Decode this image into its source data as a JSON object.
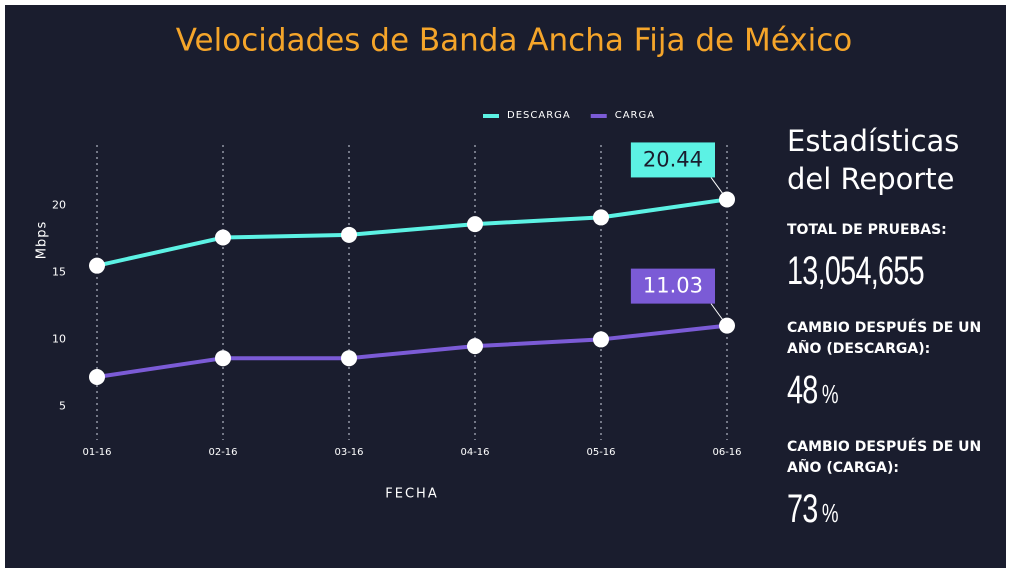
{
  "chart_data": {
    "type": "line",
    "title": "Velocidades de Banda Ancha Fija de México",
    "x_label": "FECHA",
    "y_label": "Mbps",
    "categories": [
      "01-16",
      "02-16",
      "03-16",
      "04-16",
      "05-16",
      "06-16"
    ],
    "series": [
      {
        "name": "DESCARGA",
        "color": "#5cf2e4",
        "values": [
          15.5,
          17.6,
          17.8,
          18.6,
          19.1,
          20.44
        ],
        "label_color": "#1a1d2e"
      },
      {
        "name": "CARGA",
        "color": "#7b5bd6",
        "values": [
          7.2,
          8.6,
          8.6,
          9.5,
          10.0,
          11.03
        ],
        "label_color": "#ffffff"
      }
    ],
    "ylim": [
      2.5,
      24.5
    ],
    "yticks": [
      5,
      10,
      15,
      20
    ],
    "legend": "top"
  },
  "stats": {
    "title": "Estadísticas del Reporte",
    "items": [
      {
        "label": "TOTAL DE PRUEBAS:",
        "value": "13,054,655"
      },
      {
        "label": "CAMBIO DESPUÉS DE UN AÑO (DESCARGA):",
        "value": "48",
        "unit": "%"
      },
      {
        "label": "CAMBIO DESPUÉS DE UN AÑO (CARGA):",
        "value": "73",
        "unit": "%"
      }
    ]
  }
}
